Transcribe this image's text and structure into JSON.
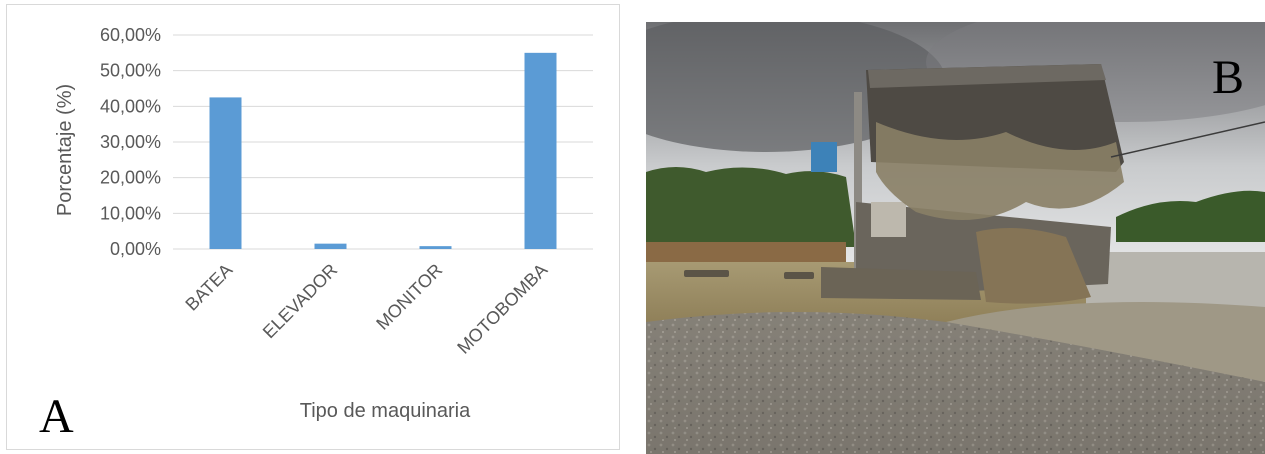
{
  "panel_a": {
    "letter": "A"
  },
  "panel_b": {
    "letter": "B",
    "image_description": "Photograph of a dredging barge discharging muddy water and gravel on a riverbank"
  },
  "colors": {
    "bar": "#5b9bd5",
    "grid": "#d9d9d9",
    "text": "#595959"
  },
  "chart_data": {
    "type": "bar",
    "title": "",
    "xlabel": "Tipo de maquinaria",
    "ylabel": "Porcentaje (%)",
    "categories": [
      "BATEA",
      "ELEVADOR",
      "MONITOR",
      "MOTOBOMBA"
    ],
    "values": [
      42.5,
      1.5,
      0.8,
      55.0
    ],
    "ylim": [
      0,
      60
    ],
    "yticks": [
      0,
      10,
      20,
      30,
      40,
      50,
      60
    ],
    "ytick_labels": [
      "0,00%",
      "10,00%",
      "20,00%",
      "30,00%",
      "40,00%",
      "50,00%",
      "60,00%"
    ],
    "grid": true,
    "legend": false
  }
}
